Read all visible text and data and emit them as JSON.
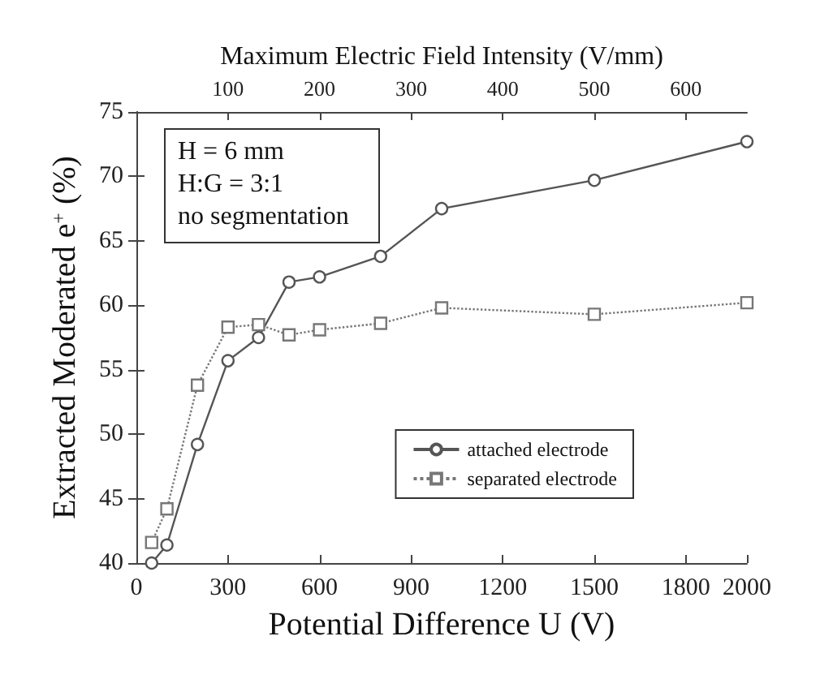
{
  "chart_data": {
    "type": "line",
    "xlabel": "Potential Difference U (V)",
    "ylabel": "Extracted Moderated e$^{+}$ (%)",
    "x2label": "Maximum Electric Field Intensity (V/mm)",
    "xlim": [
      0,
      2000
    ],
    "xticks": [
      0,
      300,
      600,
      900,
      1200,
      1500,
      1800,
      2000
    ],
    "x2lim": [
      0,
      666.7
    ],
    "x2ticks": [
      100,
      200,
      300,
      400,
      500,
      600
    ],
    "ylim": [
      40,
      75
    ],
    "yticks": [
      40,
      45,
      50,
      55,
      60,
      65,
      70,
      75
    ],
    "x": [
      50,
      100,
      200,
      300,
      400,
      500,
      600,
      800,
      1000,
      1500,
      2000
    ],
    "series": [
      {
        "name": "attached electrode",
        "color": "#555555",
        "marker": "circle",
        "line_style": "solid",
        "values": [
          40,
          41.4,
          49.2,
          55.7,
          57.5,
          61.8,
          62.2,
          63.8,
          67.5,
          69.7,
          72.7
        ]
      },
      {
        "name": "separated electrode",
        "color": "#777777",
        "marker": "square",
        "line_style": "dotted",
        "values": [
          41.6,
          44.2,
          53.8,
          58.3,
          58.5,
          57.7,
          58.1,
          58.6,
          59.8,
          59.3,
          60.2
        ]
      }
    ],
    "annotations": [
      "H = 6 mm",
      "H:G = 3:1",
      "no segmentation"
    ],
    "legend": "bottom right",
    "grid": false
  }
}
